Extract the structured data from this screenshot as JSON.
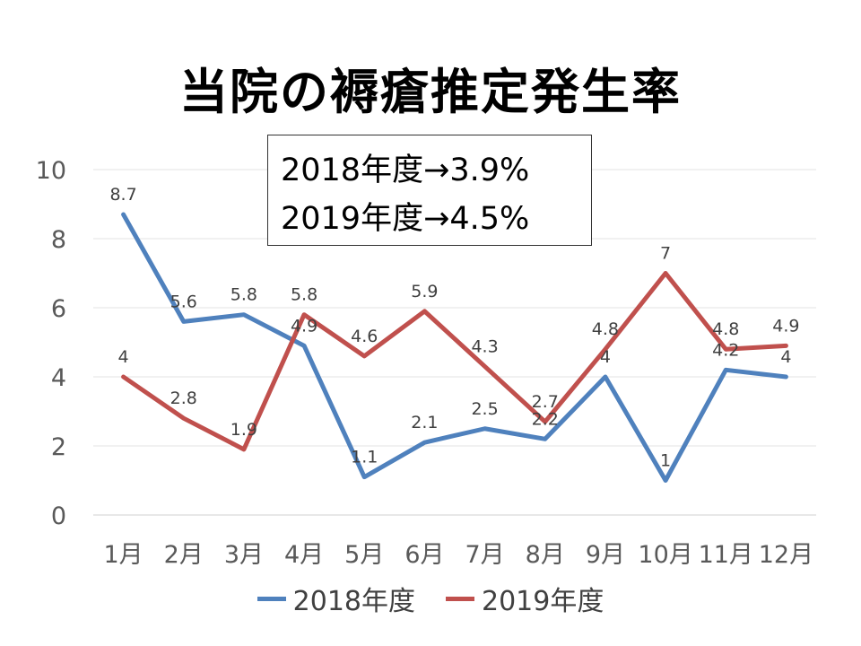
{
  "title": "当院の褥瘡推定発生率",
  "annotation": {
    "line1": "2018年度→3.9%",
    "line2": "2019年度→4.5%"
  },
  "chart_data": {
    "type": "line",
    "categories": [
      "1月",
      "2月",
      "3月",
      "4月",
      "5月",
      "6月",
      "7月",
      "8月",
      "9月",
      "10月",
      "11月",
      "12月"
    ],
    "ylim": [
      0,
      10
    ],
    "yticks": [
      0,
      2,
      4,
      6,
      8,
      10
    ],
    "grid": true,
    "legend_position": "bottom",
    "series": [
      {
        "name": "2018年度",
        "color": "#4f81bd",
        "values": [
          8.7,
          5.6,
          5.8,
          4.9,
          1.1,
          2.1,
          2.5,
          2.2,
          4,
          1,
          4.2,
          4
        ]
      },
      {
        "name": "2019年度",
        "color": "#c0504d",
        "values": [
          4,
          2.8,
          1.9,
          5.8,
          4.6,
          5.9,
          4.3,
          2.7,
          4.8,
          7,
          4.8,
          4.9
        ]
      }
    ]
  }
}
